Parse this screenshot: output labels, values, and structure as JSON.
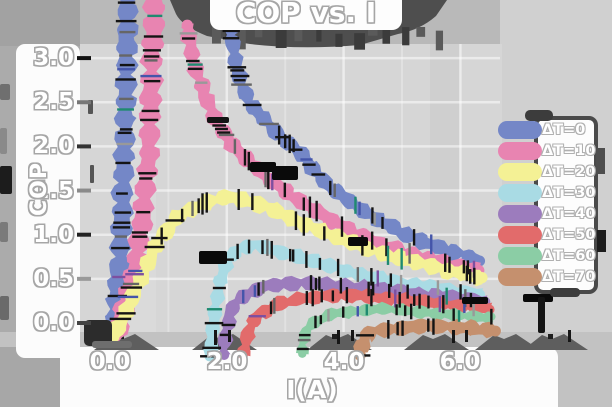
{
  "chart_data": {
    "type": "line",
    "title": "COP vs. I",
    "xlabel": "I(A)",
    "ylabel": "COP",
    "xlim": [
      0,
      6.6
    ],
    "ylim": [
      0,
      3.0
    ],
    "grid": true,
    "legend_position": "right",
    "xticks": {
      "values": [
        0,
        2,
        4,
        6
      ],
      "labels": [
        "0.0",
        "2.0",
        "4.0",
        "6.0"
      ]
    },
    "yticks": {
      "values": [
        0,
        0.5,
        1,
        1.5,
        2,
        2.5,
        3
      ],
      "labels": [
        "0.0",
        "0.5",
        "1.0",
        "1.5",
        "2.0",
        "2.5",
        "3.0"
      ]
    },
    "series": [
      {
        "name": "ΔT=0",
        "color": "#7487c7",
        "segments": [
          [
            [
              0.06,
              -0.12
            ],
            [
              0.18,
              0.8
            ],
            [
              0.26,
              2.2
            ],
            [
              0.32,
              4.3
            ]
          ],
          [
            [
              2.06,
              3.32
            ],
            [
              2.18,
              2.85
            ],
            [
              2.38,
              2.5
            ],
            [
              2.65,
              2.28
            ],
            [
              2.95,
              2.1
            ],
            [
              3.25,
              1.93
            ],
            [
              3.55,
              1.68
            ],
            [
              3.85,
              1.5
            ],
            [
              4.15,
              1.35
            ],
            [
              4.55,
              1.18
            ],
            [
              4.95,
              1.04
            ],
            [
              5.35,
              0.92
            ],
            [
              5.75,
              0.83
            ],
            [
              6.1,
              0.76
            ],
            [
              6.32,
              0.71
            ]
          ]
        ]
      },
      {
        "name": "ΔT=10",
        "color": "#e884b1",
        "segments": [
          [
            [
              0.1,
              -0.12
            ],
            [
              0.45,
              0.6
            ],
            [
              0.66,
              1.9
            ],
            [
              0.79,
              4.2
            ]
          ],
          [
            [
              1.31,
              3.38
            ],
            [
              1.45,
              2.92
            ],
            [
              1.62,
              2.58
            ],
            [
              1.82,
              2.28
            ],
            [
              2.06,
              2.04
            ],
            [
              2.36,
              1.84
            ],
            [
              2.72,
              1.63
            ],
            [
              3.12,
              1.44
            ],
            [
              3.55,
              1.26
            ],
            [
              3.98,
              1.09
            ],
            [
              4.42,
              0.95
            ],
            [
              4.9,
              0.83
            ],
            [
              5.4,
              0.73
            ],
            [
              5.9,
              0.65
            ],
            [
              6.3,
              0.6
            ]
          ]
        ]
      },
      {
        "name": "ΔT=20",
        "color": "#f4f195",
        "segments": [
          [
            [
              0.08,
              -0.15
            ],
            [
              0.3,
              0.15
            ],
            [
              0.55,
              0.55
            ],
            [
              0.85,
              0.95
            ],
            [
              1.15,
              1.2
            ],
            [
              1.5,
              1.33
            ],
            [
              1.8,
              1.4
            ],
            [
              2.05,
              1.43
            ],
            [
              2.45,
              1.37
            ],
            [
              2.9,
              1.25
            ],
            [
              3.4,
              1.1
            ],
            [
              3.9,
              0.97
            ],
            [
              4.4,
              0.85
            ],
            [
              4.9,
              0.74
            ],
            [
              5.45,
              0.65
            ],
            [
              5.95,
              0.57
            ],
            [
              6.38,
              0.51
            ]
          ]
        ]
      },
      {
        "name": "ΔT=30",
        "color": "#a9dbe4",
        "segments": [
          [
            [
              1.71,
              -0.38
            ],
            [
              1.77,
              0.0
            ],
            [
              1.87,
              0.45
            ],
            [
              2.02,
              0.72
            ],
            [
              2.22,
              0.85
            ],
            [
              2.52,
              0.88
            ],
            [
              2.92,
              0.8
            ],
            [
              3.37,
              0.72
            ],
            [
              3.82,
              0.63
            ],
            [
              4.32,
              0.55
            ],
            [
              4.82,
              0.48
            ],
            [
              5.32,
              0.42
            ],
            [
              5.85,
              0.37
            ],
            [
              6.35,
              0.33
            ]
          ]
        ]
      },
      {
        "name": "ΔT=40",
        "color": "#9c7cbd",
        "segments": [
          [
            [
              1.94,
              -0.35
            ],
            [
              2.01,
              -0.02
            ],
            [
              2.12,
              0.2
            ],
            [
              2.32,
              0.33
            ],
            [
              2.62,
              0.41
            ],
            [
              3.02,
              0.45
            ],
            [
              3.52,
              0.45
            ],
            [
              4.02,
              0.42
            ],
            [
              4.52,
              0.39
            ],
            [
              5.02,
              0.35
            ],
            [
              5.52,
              0.31
            ],
            [
              6.02,
              0.28
            ],
            [
              6.42,
              0.25
            ]
          ]
        ]
      },
      {
        "name": "ΔT=50",
        "color": "#e26b6b",
        "segments": [
          [
            [
              2.29,
              -0.35
            ],
            [
              2.37,
              -0.08
            ],
            [
              2.52,
              0.08
            ],
            [
              2.82,
              0.2
            ],
            [
              3.22,
              0.27
            ],
            [
              3.72,
              0.31
            ],
            [
              4.22,
              0.31
            ],
            [
              4.72,
              0.28
            ],
            [
              5.22,
              0.25
            ],
            [
              5.72,
              0.22
            ],
            [
              6.22,
              0.18
            ],
            [
              6.52,
              0.16
            ]
          ]
        ]
      },
      {
        "name": "ΔT=60",
        "color": "#8bcda5",
        "segments": [
          [
            [
              3.28,
              -0.35
            ],
            [
              3.35,
              -0.08
            ],
            [
              3.52,
              0.02
            ],
            [
              3.82,
              0.1
            ],
            [
              4.32,
              0.15
            ],
            [
              4.82,
              0.16
            ],
            [
              5.32,
              0.13
            ],
            [
              5.82,
              0.1
            ],
            [
              6.32,
              0.07
            ],
            [
              6.52,
              0.06
            ]
          ]
        ]
      },
      {
        "name": "ΔT=70",
        "color": "#c5906e",
        "segments": [
          [
            [
              4.27,
              -0.38
            ],
            [
              4.36,
              -0.15
            ],
            [
              4.62,
              -0.08
            ],
            [
              5.02,
              -0.05
            ],
            [
              5.52,
              -0.03
            ],
            [
              6.02,
              -0.05
            ],
            [
              6.32,
              -0.07
            ],
            [
              6.6,
              -0.1
            ]
          ]
        ]
      }
    ]
  }
}
